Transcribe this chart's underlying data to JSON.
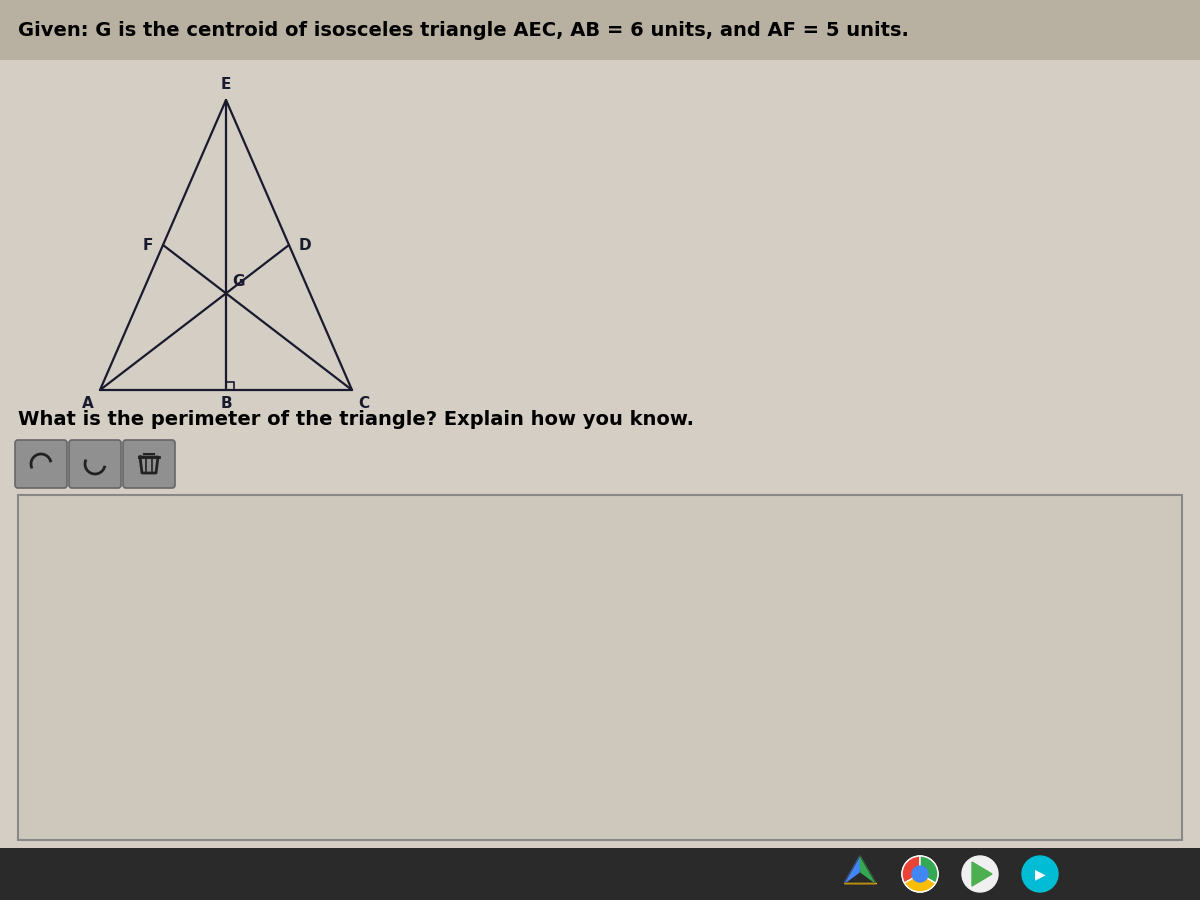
{
  "bg_color": "#c8bfb0",
  "page_bg": "#d4cec4",
  "answer_bg": "#cec8bc",
  "taskbar_bg": "#2a2a2a",
  "title_text": "Given: G is the centroid of isosceles triangle AEC, AB = 6 units, and AF = 5 units.",
  "question_text": "What is the perimeter of the triangle? Explain how you know.",
  "triangle": {
    "A": [
      0.0,
      0.0
    ],
    "E": [
      0.45,
      1.0
    ],
    "C": [
      0.9,
      0.0
    ]
  },
  "midpoints": {
    "B": [
      0.45,
      0.0
    ],
    "D": [
      0.675,
      0.5
    ],
    "F": [
      0.225,
      0.5
    ]
  },
  "line_color": "#1a1a2e",
  "line_width": 1.6,
  "label_fontsize": 11,
  "title_fontsize": 14,
  "question_fontsize": 14,
  "btn_color": "#909090",
  "btn_edge": "#707070"
}
